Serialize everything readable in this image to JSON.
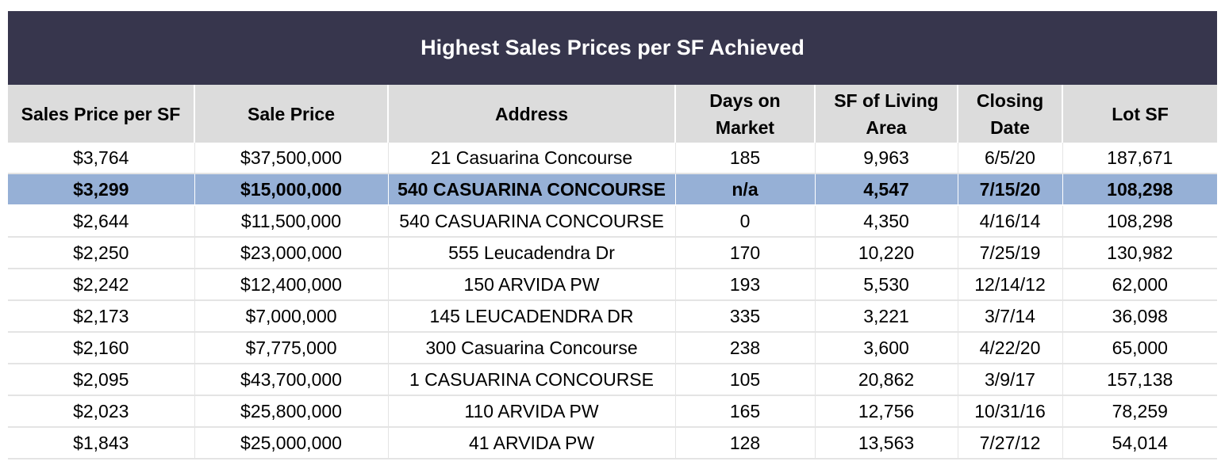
{
  "title": "Highest Sales Prices per SF Achieved",
  "columns": [
    "Sales Price per SF",
    "Sale Price",
    "Address",
    "Days on Market",
    "SF of Living Area",
    "Closing Date",
    "Lot SF"
  ],
  "rows": [
    [
      "$3,764",
      "$37,500,000",
      "21 Casuarina Concourse",
      "185",
      "9,963",
      "6/5/20",
      "187,671"
    ],
    [
      "$3,299",
      "$15,000,000",
      "540 CASUARINA CONCOURSE",
      "n/a",
      "4,547",
      "7/15/20",
      "108,298"
    ],
    [
      "$2,644",
      "$11,500,000",
      "540 CASUARINA CONCOURSE",
      "0",
      "4,350",
      "4/16/14",
      "108,298"
    ],
    [
      "$2,250",
      "$23,000,000",
      "555 Leucadendra Dr",
      "170",
      "10,220",
      "7/25/19",
      "130,982"
    ],
    [
      "$2,242",
      "$12,400,000",
      "150 ARVIDA PW",
      "193",
      "5,530",
      "12/14/12",
      "62,000"
    ],
    [
      "$2,173",
      "$7,000,000",
      "145 LEUCADENDRA DR",
      "335",
      "3,221",
      "3/7/14",
      "36,098"
    ],
    [
      "$2,160",
      "$7,775,000",
      "300 Casuarina Concourse",
      "238",
      "3,600",
      "4/22/20",
      "65,000"
    ],
    [
      "$2,095",
      "$43,700,000",
      "1 CASUARINA CONCOURSE",
      "105",
      "20,862",
      "3/9/17",
      "157,138"
    ],
    [
      "$2,023",
      "$25,800,000",
      "110 ARVIDA PW",
      "165",
      "12,756",
      "10/31/16",
      "78,259"
    ],
    [
      "$1,843",
      "$25,000,000",
      "41 ARVIDA PW",
      "128",
      "13,563",
      "7/27/12",
      "54,014"
    ]
  ],
  "highlight_row": 1,
  "colors": {
    "title_background": "#37364d",
    "header_background": "#dcdcdc",
    "highlight_background": "#96b0d6"
  }
}
